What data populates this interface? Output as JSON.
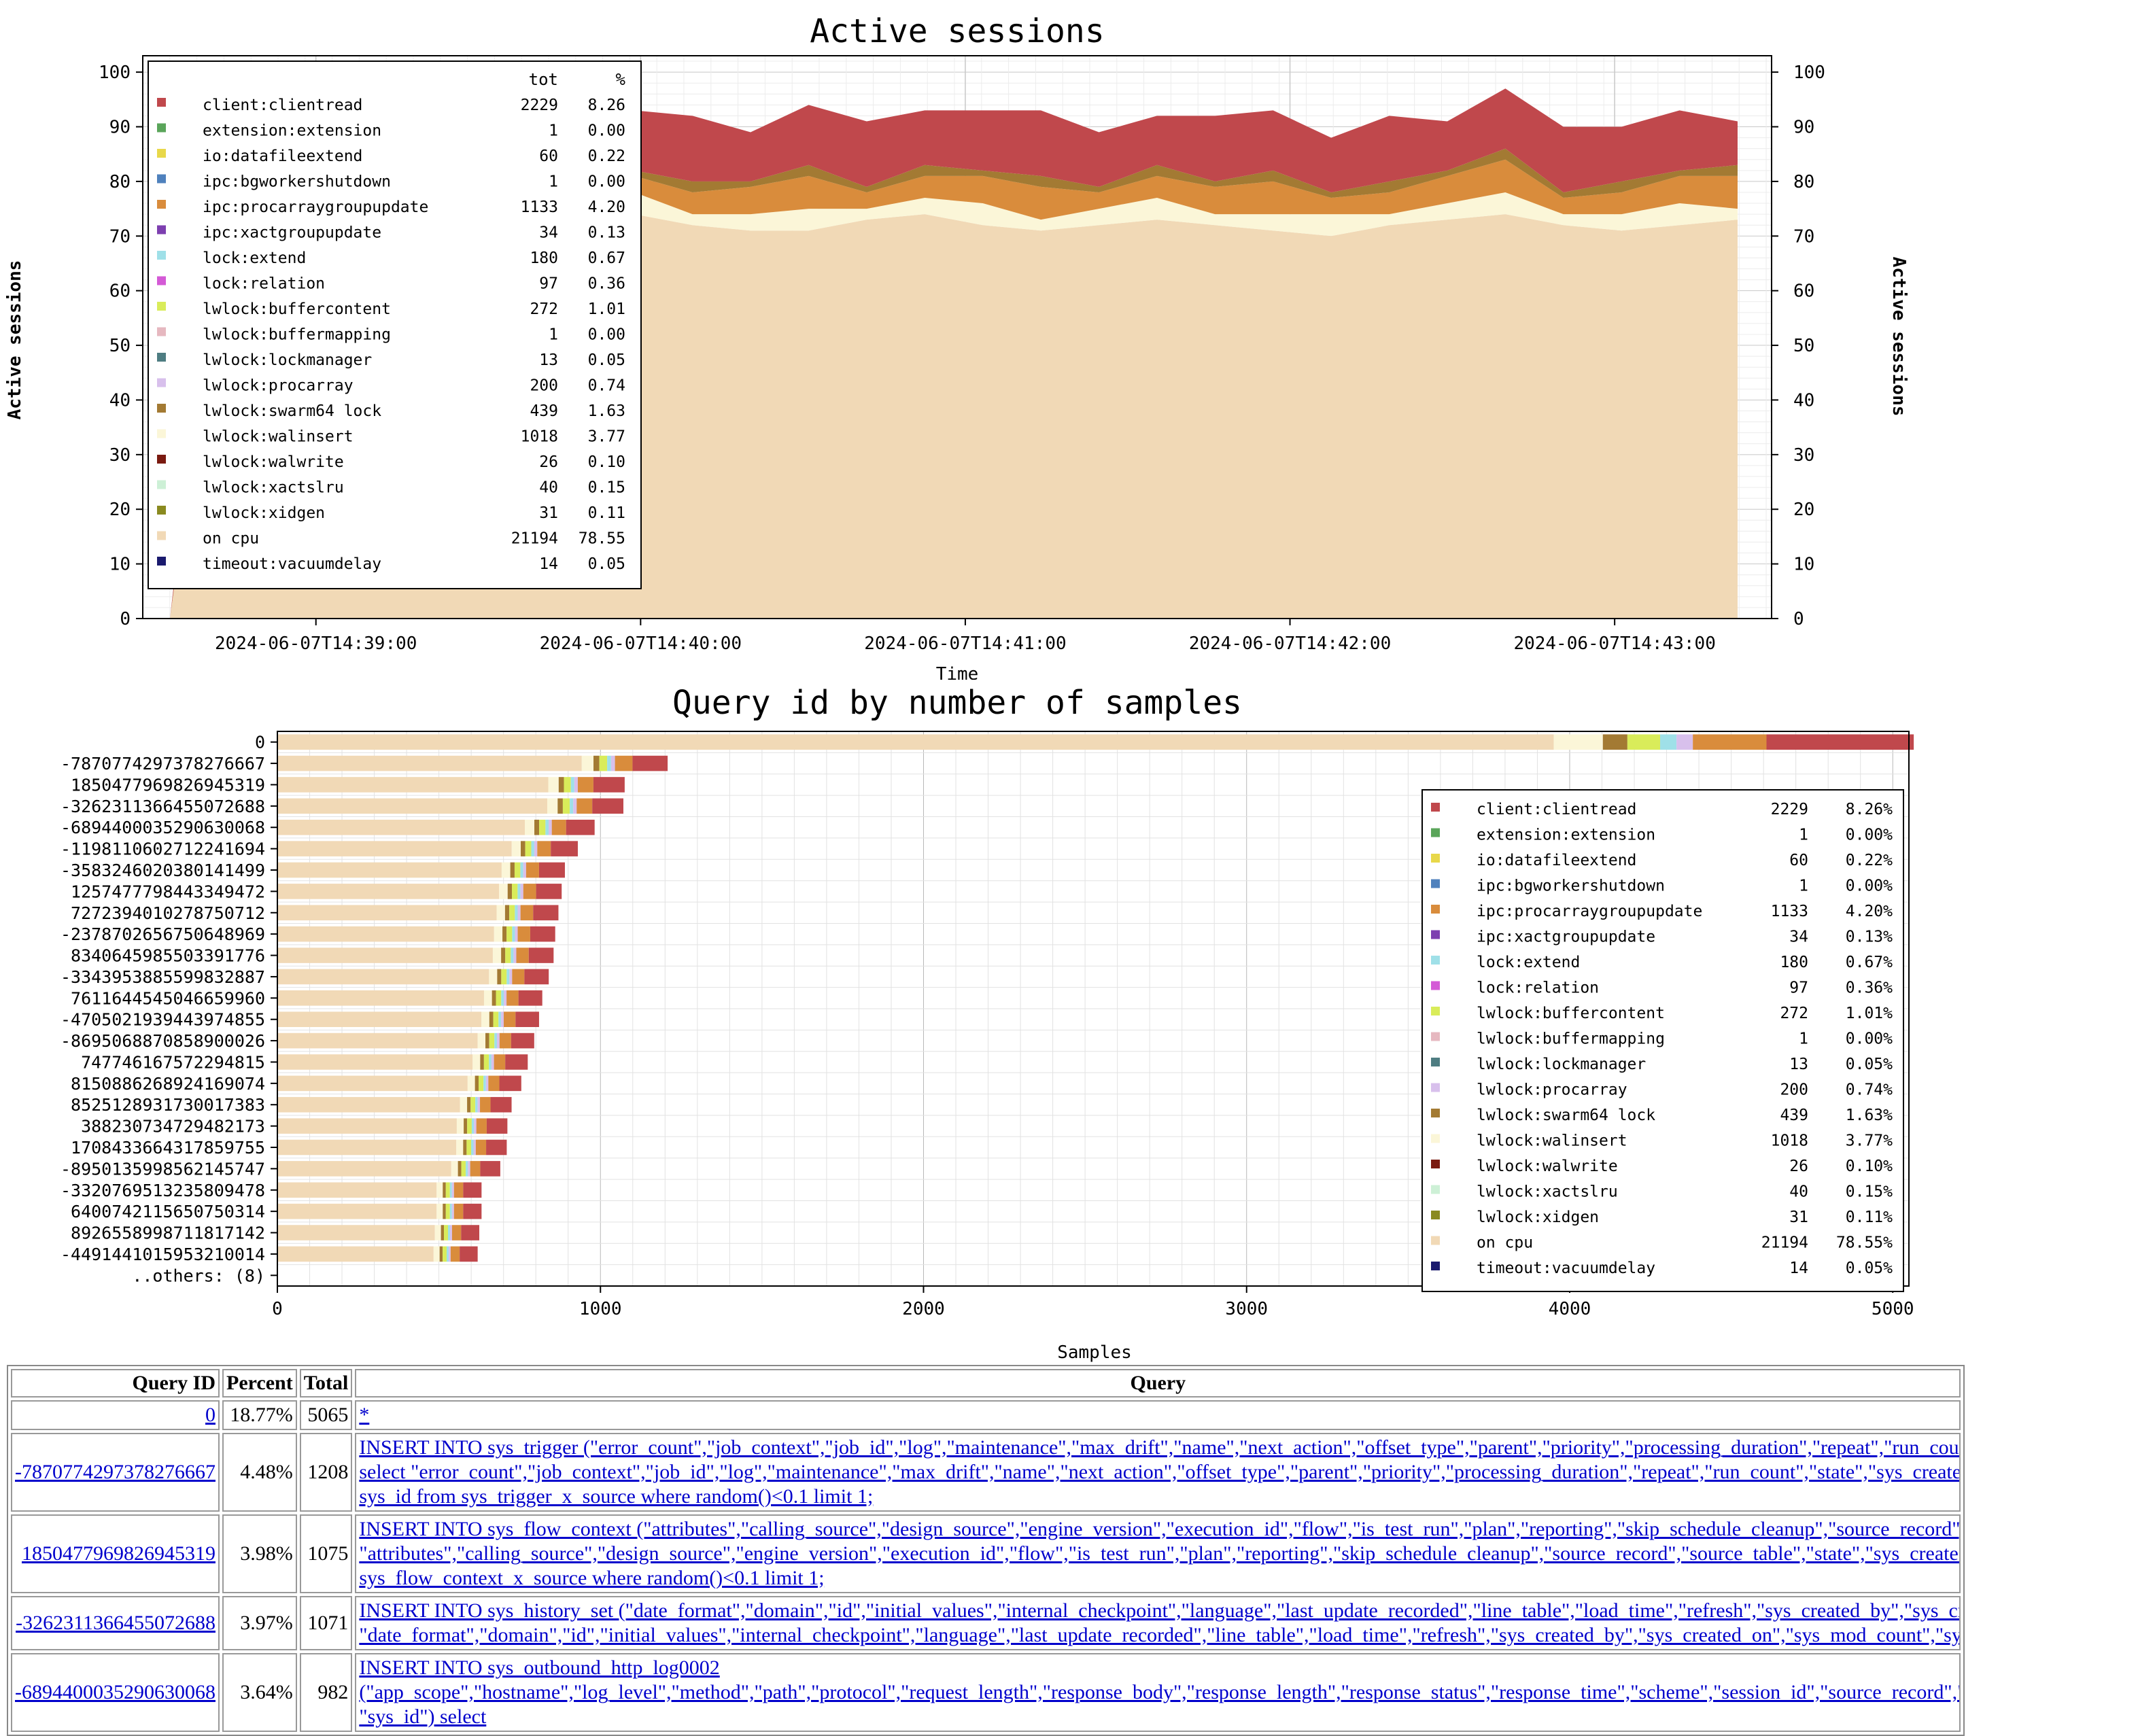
{
  "legend_columns": {
    "tot": "tot",
    "pct": "%"
  },
  "chart_data": [
    {
      "type": "area",
      "title": "Active sessions",
      "xlabel": "Time",
      "ylabel": "Active sessions",
      "ylabel_right": "Active sessions",
      "ylim": [
        0,
        103
      ],
      "yticks": [
        0,
        10,
        20,
        30,
        40,
        50,
        60,
        70,
        80,
        90,
        100
      ],
      "xticks": [
        "2024-06-07T14:39:00",
        "2024-06-07T14:40:00",
        "2024-06-07T14:41:00",
        "2024-06-07T14:42:00",
        "2024-06-07T14:43:00"
      ],
      "xrange": [
        "2024-06-07T14:38:28",
        "2024-06-07T14:43:29"
      ],
      "stacked": true,
      "grid": true,
      "legend_position": "top-left",
      "legend": [
        {
          "name": "client:clientread",
          "tot": "2229",
          "pct": "8.26",
          "color": "#c0484c"
        },
        {
          "name": "extension:extension",
          "tot": "1",
          "pct": "0.00",
          "color": "#5aa55a"
        },
        {
          "name": "io:datafileextend",
          "tot": "60",
          "pct": "0.22",
          "color": "#e8d84a"
        },
        {
          "name": "ipc:bgworkershutdown",
          "tot": "1",
          "pct": "0.00",
          "color": "#4f81bd"
        },
        {
          "name": "ipc:procarraygroupupdate",
          "tot": "1133",
          "pct": "4.20",
          "color": "#d98c3c"
        },
        {
          "name": "ipc:xactgroupupdate",
          "tot": "34",
          "pct": "0.13",
          "color": "#7d3fb0"
        },
        {
          "name": "lock:extend",
          "tot": "180",
          "pct": "0.67",
          "color": "#9fe0e8"
        },
        {
          "name": "lock:relation",
          "tot": "97",
          "pct": "0.36",
          "color": "#d45ad6"
        },
        {
          "name": "lwlock:buffercontent",
          "tot": "272",
          "pct": "1.01",
          "color": "#d9ec5a"
        },
        {
          "name": "lwlock:buffermapping",
          "tot": "1",
          "pct": "0.00",
          "color": "#e6b8c0"
        },
        {
          "name": "lwlock:lockmanager",
          "tot": "13",
          "pct": "0.05",
          "color": "#4e7d82"
        },
        {
          "name": "lwlock:procarray",
          "tot": "200",
          "pct": "0.74",
          "color": "#d8c0ec"
        },
        {
          "name": "lwlock:swarm64 lock",
          "tot": "439",
          "pct": "1.63",
          "color": "#a37a33"
        },
        {
          "name": "lwlock:walinsert",
          "tot": "1018",
          "pct": "3.77",
          "color": "#fbf6d8"
        },
        {
          "name": "lwlock:walwrite",
          "tot": "26",
          "pct": "0.10",
          "color": "#7a1a10"
        },
        {
          "name": "lwlock:xactslru",
          "tot": "40",
          "pct": "0.15",
          "color": "#cdf0d6"
        },
        {
          "name": "lwlock:xidgen",
          "tot": "31",
          "pct": "0.11",
          "color": "#8a8a20"
        },
        {
          "name": "on cpu",
          "tot": "21194",
          "pct": "78.55",
          "color": "#f1d9b6"
        },
        {
          "name": "timeout:vacuumdelay",
          "tot": "14",
          "pct": "0.05",
          "color": "#1a1a6e"
        }
      ],
      "series_approx": [
        {
          "name": "on cpu",
          "values": [
            0,
            72,
            73,
            74,
            72,
            71,
            72,
            73,
            74,
            72,
            71,
            71,
            73,
            74,
            72,
            71,
            72,
            73,
            72,
            71,
            70,
            72,
            73,
            74,
            72,
            71,
            72,
            73
          ]
        },
        {
          "name": "client:clientread",
          "values": [
            0,
            12,
            10,
            9,
            11,
            13,
            12,
            10,
            11,
            12,
            9,
            11,
            12,
            10,
            11,
            12,
            10,
            9,
            12,
            11,
            10,
            12,
            9,
            11,
            12,
            10,
            11,
            8
          ]
        }
      ]
    },
    {
      "type": "bar",
      "orientation": "horizontal",
      "stacked": true,
      "title": "Query id by number of samples",
      "xlabel": "Samples",
      "ylabel": "",
      "xlim": [
        0,
        5050
      ],
      "xticks": [
        0,
        1000,
        2000,
        3000,
        4000,
        5000
      ],
      "grid": true,
      "legend_position": "right",
      "legend": [
        {
          "name": "client:clientread",
          "tot": "2229",
          "pct": "8.26%"
        },
        {
          "name": "extension:extension",
          "tot": "1",
          "pct": "0.00%"
        },
        {
          "name": "io:datafileextend",
          "tot": "60",
          "pct": "0.22%"
        },
        {
          "name": "ipc:bgworkershutdown",
          "tot": "1",
          "pct": "0.00%"
        },
        {
          "name": "ipc:procarraygroupupdate",
          "tot": "1133",
          "pct": "4.20%"
        },
        {
          "name": "ipc:xactgroupupdate",
          "tot": "34",
          "pct": "0.13%"
        },
        {
          "name": "lock:extend",
          "tot": "180",
          "pct": "0.67%"
        },
        {
          "name": "lock:relation",
          "tot": "97",
          "pct": "0.36%"
        },
        {
          "name": "lwlock:buffercontent",
          "tot": "272",
          "pct": "1.01%"
        },
        {
          "name": "lwlock:buffermapping",
          "tot": "1",
          "pct": "0.00%"
        },
        {
          "name": "lwlock:lockmanager",
          "tot": "13",
          "pct": "0.05%"
        },
        {
          "name": "lwlock:procarray",
          "tot": "200",
          "pct": "0.74%"
        },
        {
          "name": "lwlock:swarm64 lock",
          "tot": "439",
          "pct": "1.63%"
        },
        {
          "name": "lwlock:walinsert",
          "tot": "1018",
          "pct": "3.77%"
        },
        {
          "name": "lwlock:walwrite",
          "tot": "26",
          "pct": "0.10%"
        },
        {
          "name": "lwlock:xactslru",
          "tot": "40",
          "pct": "0.15%"
        },
        {
          "name": "lwlock:xidgen",
          "tot": "31",
          "pct": "0.11%"
        },
        {
          "name": "on cpu",
          "tot": "21194",
          "pct": "78.55%"
        },
        {
          "name": "timeout:vacuumdelay",
          "tot": "14",
          "pct": "0.05%"
        }
      ],
      "categories": [
        "0",
        "-7870774297378276667",
        "1850477969826945319",
        "-3262311366455072688",
        "-6894400035290630068",
        "-1198110602712241694",
        "-3583246020380141499",
        "1257477798443349472",
        "7272394010278750712",
        "-2378702656750648969",
        "8340645985503391776",
        "-3343953885599832887",
        "7611644545046659960",
        "-4705021939443974855",
        "-8695068870858900026",
        "747746167572294815",
        "8150886268924169074",
        "8525128931730017383",
        "388230734729482173",
        "1708433664317859755",
        "-8950135998562145747",
        "-3320769513235809478",
        "6400742115650750314",
        "8926558998711817142",
        "-4491441015953210014",
        "..others: (8)"
      ],
      "totals": [
        5065,
        1208,
        1075,
        1071,
        982,
        930,
        890,
        880,
        870,
        860,
        855,
        840,
        820,
        810,
        795,
        775,
        755,
        725,
        712,
        710,
        690,
        632,
        632,
        625,
        620,
        0
      ]
    }
  ],
  "table": {
    "headers": [
      "Query ID",
      "Percent",
      "Total",
      "Query"
    ],
    "rows": [
      {
        "id": "0",
        "percent": "18.77%",
        "total": "5065",
        "query": [
          "*"
        ]
      },
      {
        "id": "-7870774297378276667",
        "percent": "4.48%",
        "total": "1208",
        "query": [
          "INSERT INTO sys_trigger (\"error_count\",\"job_context\",\"job_id\",\"log\",\"maintenance\",\"max_drift\",\"name\",\"next_action\",\"offset_type\",\"parent\",\"priority\",\"processing_duration\",\"repeat\",\"run_count\",\"sta",
          "select \"error_count\",\"job_context\",\"job_id\",\"log\",\"maintenance\",\"max_drift\",\"name\",\"next_action\",\"offset_type\",\"parent\",\"priority\",\"processing_duration\",\"repeat\",\"run_count\",\"state\",\"sys_created_by\",\"",
          "sys_id from sys_trigger_x_source where random()<0.1 limit 1;"
        ]
      },
      {
        "id": "1850477969826945319",
        "percent": "3.98%",
        "total": "1075",
        "query": [
          "INSERT INTO sys_flow_context (\"attributes\",\"calling_source\",\"design_source\",\"engine_version\",\"execution_id\",\"flow\",\"is_test_run\",\"plan\",\"reporting\",\"skip_schedule_cleanup\",\"source_record\",\"source",
          "\"attributes\",\"calling_source\",\"design_source\",\"engine_version\",\"execution_id\",\"flow\",\"is_test_run\",\"plan\",\"reporting\",\"skip_schedule_cleanup\",\"source_record\",\"source_table\",\"state\",\"sys_created_by\",\"",
          "sys_flow_context_x_source where random()<0.1 limit 1;"
        ]
      },
      {
        "id": "-3262311366455072688",
        "percent": "3.97%",
        "total": "1071",
        "query": [
          "INSERT INTO sys_history_set (\"date_format\",\"domain\",\"id\",\"initial_values\",\"internal_checkpoint\",\"language\",\"last_update_recorded\",\"line_table\",\"load_time\",\"refresh\",\"sys_created_by\",\"sys_created_c",
          "\"date_format\",\"domain\",\"id\",\"initial_values\",\"internal_checkpoint\",\"language\",\"last_update_recorded\",\"line_table\",\"load_time\",\"refresh\",\"sys_created_by\",\"sys_created_on\",\"sys_mod_count\",\"sys_upda"
        ]
      },
      {
        "id": "-6894400035290630068",
        "percent": "3.64%",
        "total": "982",
        "query": [
          "INSERT INTO sys_outbound_http_log0002",
          "(\"app_scope\",\"hostname\",\"log_level\",\"method\",\"path\",\"protocol\",\"request_length\",\"response_body\",\"response_length\",\"response_status\",\"response_time\",\"scheme\",\"session_id\",\"source_record\",\"source",
          "\"sys_id\") select"
        ]
      }
    ]
  }
}
